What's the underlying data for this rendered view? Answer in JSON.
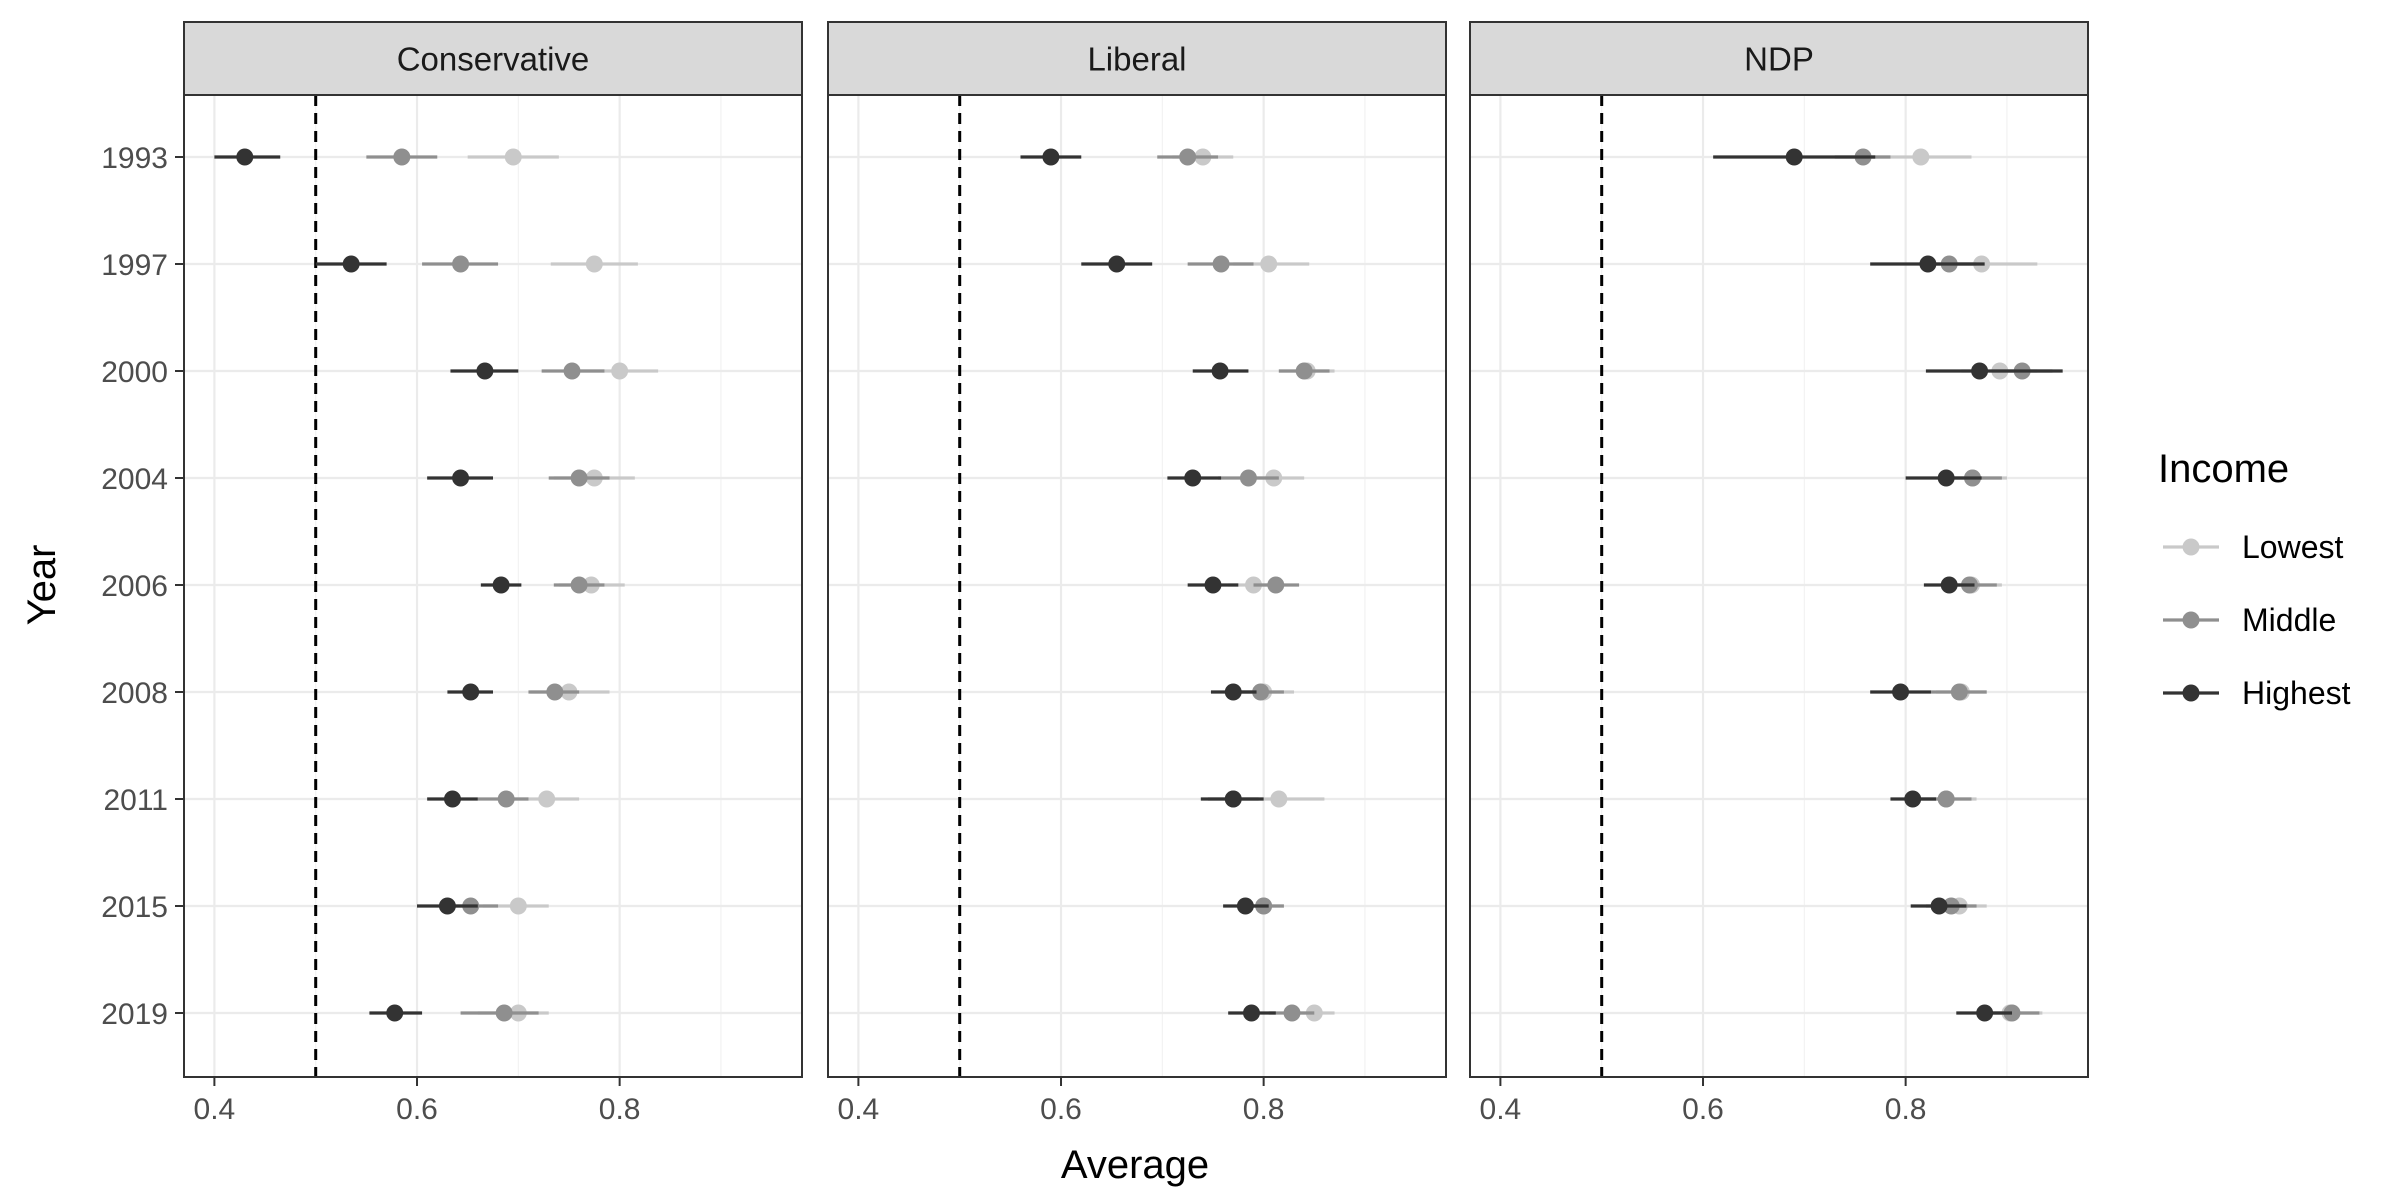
{
  "chart_data": {
    "type": "dot-and-whisker",
    "facet_by": "party",
    "xlabel": "Average",
    "ylabel": "Year",
    "xlim": [
      0.37,
      0.98
    ],
    "xticks": [
      0.4,
      0.6,
      0.8
    ],
    "x_ticklabels": [
      "0.4",
      "0.6",
      "0.8"
    ],
    "reference_line": 0.5,
    "grid": true,
    "legend": {
      "title": "Income",
      "placement": "right",
      "entries": [
        {
          "name": "Lowest",
          "color": "#c9c9c9"
        },
        {
          "name": "Middle",
          "color": "#8f8f8f"
        },
        {
          "name": "Highest",
          "color": "#333333"
        }
      ]
    },
    "years": [
      "1993",
      "1997",
      "2000",
      "2004",
      "2006",
      "2008",
      "2011",
      "2015",
      "2019"
    ],
    "facets": [
      {
        "name": "Conservative",
        "series": [
          {
            "name": "Lowest",
            "estimates": [
              0.695,
              0.775,
              0.8,
              0.775,
              0.772,
              0.75,
              0.728,
              0.7,
              0.7
            ],
            "low": [
              0.65,
              0.732,
              0.762,
              0.735,
              0.74,
              0.712,
              0.695,
              0.665,
              0.66
            ],
            "high": [
              0.74,
              0.818,
              0.838,
              0.815,
              0.805,
              0.79,
              0.76,
              0.73,
              0.73
            ]
          },
          {
            "name": "Middle",
            "estimates": [
              0.585,
              0.643,
              0.753,
              0.76,
              0.76,
              0.736,
              0.688,
              0.653,
              0.686
            ],
            "low": [
              0.55,
              0.605,
              0.723,
              0.73,
              0.735,
              0.71,
              0.66,
              0.625,
              0.643
            ],
            "high": [
              0.62,
              0.68,
              0.785,
              0.79,
              0.785,
              0.76,
              0.71,
              0.68,
              0.72
            ]
          },
          {
            "name": "Highest",
            "estimates": [
              0.43,
              0.535,
              0.667,
              0.643,
              0.683,
              0.653,
              0.635,
              0.63,
              0.578
            ],
            "low": [
              0.4,
              0.5,
              0.633,
              0.61,
              0.663,
              0.63,
              0.61,
              0.6,
              0.553
            ],
            "high": [
              0.465,
              0.57,
              0.7,
              0.675,
              0.703,
              0.675,
              0.66,
              0.66,
              0.605
            ]
          }
        ]
      },
      {
        "name": "Liberal",
        "series": [
          {
            "name": "Lowest",
            "estimates": [
              0.74,
              0.805,
              0.843,
              0.81,
              0.79,
              0.8,
              0.815,
              0.8,
              0.85
            ],
            "low": [
              0.71,
              0.77,
              0.815,
              0.78,
              0.765,
              0.775,
              0.775,
              0.78,
              0.825
            ],
            "high": [
              0.77,
              0.845,
              0.87,
              0.84,
              0.82,
              0.83,
              0.86,
              0.82,
              0.87
            ]
          },
          {
            "name": "Middle",
            "estimates": [
              0.725,
              0.758,
              0.84,
              0.785,
              0.812,
              0.797,
              0.77,
              0.8,
              0.828
            ],
            "low": [
              0.695,
              0.725,
              0.815,
              0.755,
              0.79,
              0.775,
              0.745,
              0.78,
              0.805
            ],
            "high": [
              0.755,
              0.79,
              0.865,
              0.815,
              0.835,
              0.82,
              0.795,
              0.82,
              0.85
            ]
          },
          {
            "name": "Highest",
            "estimates": [
              0.59,
              0.655,
              0.757,
              0.73,
              0.75,
              0.77,
              0.77,
              0.782,
              0.788
            ],
            "low": [
              0.56,
              0.62,
              0.73,
              0.705,
              0.725,
              0.748,
              0.738,
              0.76,
              0.765
            ],
            "high": [
              0.62,
              0.69,
              0.785,
              0.758,
              0.775,
              0.793,
              0.8,
              0.805,
              0.812
            ]
          }
        ]
      },
      {
        "name": "NDP",
        "series": [
          {
            "name": "Lowest",
            "estimates": [
              0.815,
              0.875,
              0.893,
              0.866,
              0.865,
              0.855,
              0.84,
              0.853,
              0.903
            ],
            "low": [
              0.765,
              0.82,
              0.855,
              0.835,
              0.84,
              0.83,
              0.81,
              0.83,
              0.875
            ],
            "high": [
              0.865,
              0.93,
              0.93,
              0.9,
              0.895,
              0.88,
              0.87,
              0.88,
              0.935
            ]
          },
          {
            "name": "Middle",
            "estimates": [
              0.758,
              0.843,
              0.915,
              0.866,
              0.863,
              0.853,
              0.84,
              0.845,
              0.905
            ],
            "low": [
              0.73,
              0.815,
              0.885,
              0.838,
              0.838,
              0.825,
              0.815,
              0.82,
              0.88
            ],
            "high": [
              0.785,
              0.87,
              0.945,
              0.895,
              0.89,
              0.88,
              0.865,
              0.87,
              0.932
            ]
          },
          {
            "name": "Highest",
            "estimates": [
              0.69,
              0.822,
              0.873,
              0.84,
              0.843,
              0.795,
              0.807,
              0.833,
              0.878
            ],
            "low": [
              0.61,
              0.765,
              0.82,
              0.8,
              0.818,
              0.765,
              0.785,
              0.805,
              0.85
            ],
            "high": [
              0.77,
              0.878,
              0.955,
              0.875,
              0.868,
              0.825,
              0.83,
              0.86,
              0.905
            ]
          }
        ]
      }
    ]
  }
}
